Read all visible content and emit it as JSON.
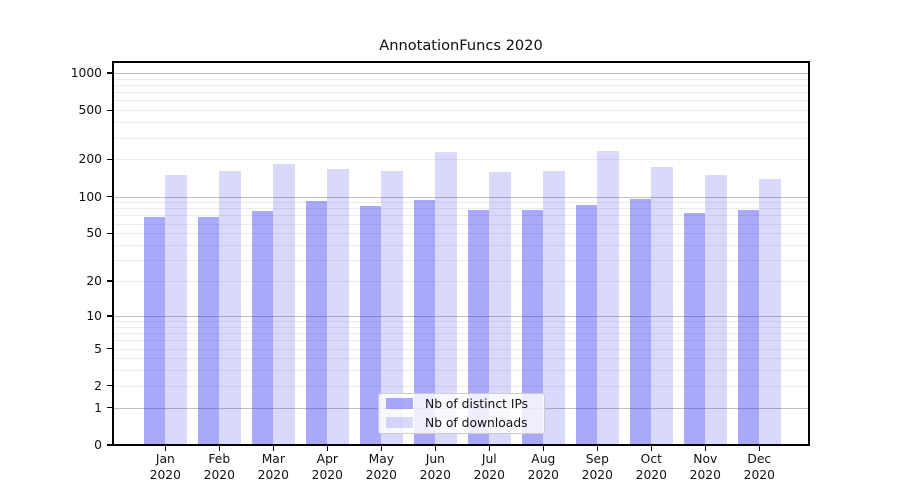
{
  "figure": {
    "background": "#ffffff",
    "spine_color": "#000000"
  },
  "chart_data": {
    "type": "bar",
    "title": "AnnotationFuncs 2020",
    "categories": [
      "Jan",
      "Feb",
      "Mar",
      "Apr",
      "May",
      "Jun",
      "Jul",
      "Aug",
      "Sep",
      "Oct",
      "Nov",
      "Dec"
    ],
    "x_year": "2020",
    "series": [
      {
        "name": "Nb of distinct IPs",
        "color": "#aaaaf9",
        "rgba": "rgba(47,47,240,0.41)",
        "values": [
          68,
          68,
          76,
          92,
          84,
          94,
          77,
          77,
          85,
          96,
          74,
          78
        ]
      },
      {
        "name": "Nb of downloads",
        "color": "#d9d9fb",
        "rgba": "rgba(47,47,240,0.18)",
        "values": [
          150,
          161,
          183,
          166,
          160,
          228,
          158,
          160,
          234,
          174,
          151,
          139
        ]
      }
    ],
    "yscale": "log1p",
    "ylim": [
      0,
      1250
    ],
    "y_ticks": [
      0,
      1,
      2,
      5,
      10,
      20,
      50,
      100,
      200,
      500,
      1000
    ],
    "grid": {
      "major_at": [
        1,
        10,
        100,
        1000
      ],
      "major_color": "#bfbfbf",
      "minor_color": "#ececec"
    },
    "legend_position": "lower center"
  }
}
